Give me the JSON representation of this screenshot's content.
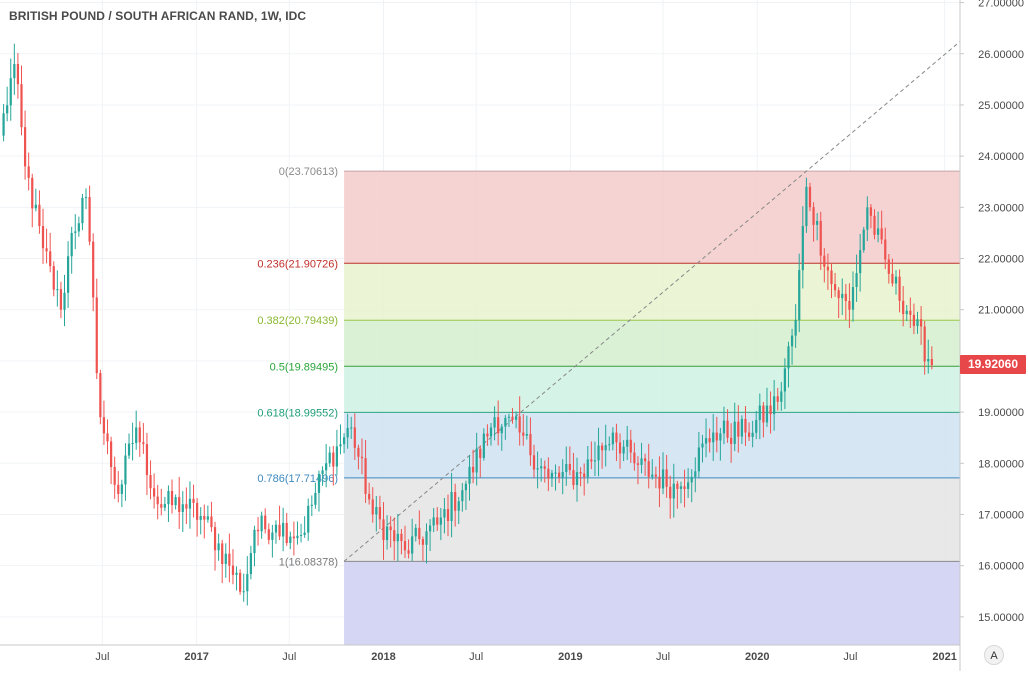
{
  "title": "BRITISH POUND / SOUTH AFRICAN RAND, 1W, IDC",
  "price_tag": "19.92060",
  "scale_mode_label": "A",
  "colors": {
    "up": "#26a69a",
    "down": "#ef5350",
    "fib_0_236_fill": "#f3cbcb",
    "fib_236_382_fill": "#e8f2cd",
    "fib_382_5_fill": "#d3efcf",
    "fib_5_618_fill": "#cff1e3",
    "fib_618_786_fill": "#cfe3f1",
    "fib_786_1_fill": "#e4e4e4",
    "fib_below_1_fill": "#d3d3f3",
    "price_tag": "#e8474a"
  },
  "chart_data": {
    "type": "candlestick",
    "title": "BRITISH POUND / SOUTH AFRICAN RAND, 1W, IDC",
    "x_range": [
      "2015-12-14",
      "2021-01-31"
    ],
    "ylim": [
      14.45,
      27.05
    ],
    "y_ticks": [
      "15.00000",
      "16.00000",
      "17.00000",
      "18.00000",
      "19.00000",
      "20.00000",
      "21.00000",
      "22.00000",
      "23.00000",
      "24.00000",
      "25.00000",
      "26.00000",
      "27.00000"
    ],
    "x_ticks": [
      {
        "label": "Jul",
        "date": "2016-07-01"
      },
      {
        "label": "2017",
        "date": "2017-01-01"
      },
      {
        "label": "Jul",
        "date": "2017-07-01"
      },
      {
        "label": "2018",
        "date": "2018-01-01"
      },
      {
        "label": "Jul",
        "date": "2018-07-01"
      },
      {
        "label": "2019",
        "date": "2019-01-01"
      },
      {
        "label": "Jul",
        "date": "2019-07-01"
      },
      {
        "label": "2020",
        "date": "2020-01-01"
      },
      {
        "label": "Jul",
        "date": "2020-07-01"
      },
      {
        "label": "2021",
        "date": "2021-01-01"
      }
    ],
    "grid": true,
    "last_price": 19.9206,
    "fibonacci": {
      "start_date": "2017-10-16",
      "start_value": 16.08378,
      "end_date": "2020-04-06",
      "end_value": 23.70613,
      "levels": [
        {
          "label": "0(23.70613)",
          "value": 23.70613,
          "color": "#8a8a8a",
          "line_color": "#c8a5a5"
        },
        {
          "label": "0.236(21.90726)",
          "value": 21.90726,
          "color": "#c0302b",
          "line_color": "#c0302b"
        },
        {
          "label": "0.382(20.79439)",
          "value": 20.79439,
          "color": "#8bb832",
          "line_color": "#9cc74a"
        },
        {
          "label": "0.5(19.89495)",
          "value": 19.89495,
          "color": "#2aa53a",
          "line_color": "#3a9c3a"
        },
        {
          "label": "0.618(18.99552)",
          "value": 18.99552,
          "color": "#1f9e78",
          "line_color": "#2fa585"
        },
        {
          "label": "0.786(17.71496)",
          "value": 17.71496,
          "color": "#3d8ac0",
          "line_color": "#3d8ac0"
        },
        {
          "label": "1(16.08378)",
          "value": 16.08378,
          "color": "#7a7a7a",
          "line_color": "#8a8a8a"
        }
      ]
    },
    "key_points": [
      {
        "date": "2015-12-14",
        "value": 24.4
      },
      {
        "date": "2016-01-11",
        "value": 25.8
      },
      {
        "date": "2016-02-01",
        "value": 23.8
      },
      {
        "date": "2016-03-07",
        "value": 22.2
      },
      {
        "date": "2016-04-11",
        "value": 21.0
      },
      {
        "date": "2016-05-02",
        "value": 22.5
      },
      {
        "date": "2016-05-30",
        "value": 23.2
      },
      {
        "date": "2016-06-27",
        "value": 18.9
      },
      {
        "date": "2016-08-01",
        "value": 17.4
      },
      {
        "date": "2016-09-05",
        "value": 18.7
      },
      {
        "date": "2016-10-17",
        "value": 17.2
      },
      {
        "date": "2016-12-05",
        "value": 17.2
      },
      {
        "date": "2017-01-16",
        "value": 16.9
      },
      {
        "date": "2017-03-06",
        "value": 16.0
      },
      {
        "date": "2017-04-03",
        "value": 15.5
      },
      {
        "date": "2017-04-24",
        "value": 16.7
      },
      {
        "date": "2017-06-05",
        "value": 16.8
      },
      {
        "date": "2017-07-24",
        "value": 16.6
      },
      {
        "date": "2017-09-11",
        "value": 18.0
      },
      {
        "date": "2017-10-30",
        "value": 18.7
      },
      {
        "date": "2017-12-11",
        "value": 17.0
      },
      {
        "date": "2018-02-12",
        "value": 16.3
      },
      {
        "date": "2018-04-16",
        "value": 16.8
      },
      {
        "date": "2018-06-11",
        "value": 17.6
      },
      {
        "date": "2018-08-06",
        "value": 18.9
      },
      {
        "date": "2018-09-24",
        "value": 18.6
      },
      {
        "date": "2018-11-19",
        "value": 17.7
      },
      {
        "date": "2019-01-21",
        "value": 17.8
      },
      {
        "date": "2019-03-25",
        "value": 18.6
      },
      {
        "date": "2019-05-06",
        "value": 18.0
      },
      {
        "date": "2019-07-29",
        "value": 17.5
      },
      {
        "date": "2019-10-07",
        "value": 18.6
      },
      {
        "date": "2019-12-09",
        "value": 18.6
      },
      {
        "date": "2020-02-10",
        "value": 19.2
      },
      {
        "date": "2020-03-16",
        "value": 20.8
      },
      {
        "date": "2020-04-06",
        "value": 23.4
      },
      {
        "date": "2020-05-25",
        "value": 21.5
      },
      {
        "date": "2020-06-29",
        "value": 21.0
      },
      {
        "date": "2020-08-03",
        "value": 23.0
      },
      {
        "date": "2020-09-14",
        "value": 21.7
      },
      {
        "date": "2020-10-26",
        "value": 20.9
      },
      {
        "date": "2020-12-07",
        "value": 19.9206
      }
    ]
  }
}
